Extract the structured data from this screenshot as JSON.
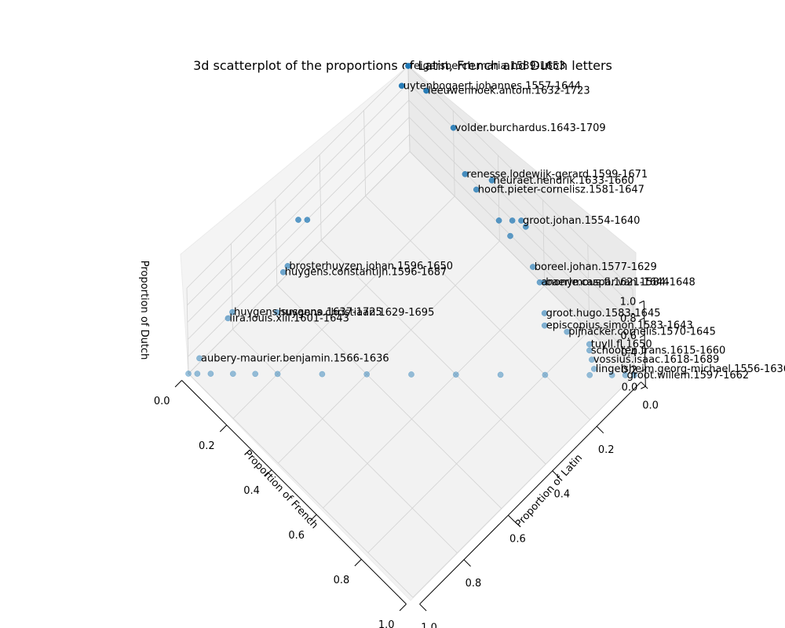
{
  "chart_data": {
    "type": "scatter",
    "projection": "3d",
    "title": "3d scatterplot of the proportions of Latin, French and Dutch letters",
    "xlabel": "Proportion of Latin",
    "ylabel": "Proportion of French",
    "zlabel": "Proportion of Dutch",
    "xlim": [
      0,
      1
    ],
    "ylim": [
      0,
      1
    ],
    "zlim": [
      0,
      1
    ],
    "x_ticks": [
      "0.0",
      "0.2",
      "0.4",
      "0.6",
      "0.8",
      "1.0"
    ],
    "y_ticks": [
      "0.0",
      "0.2",
      "0.4",
      "0.6",
      "0.8",
      "1.0"
    ],
    "z_ticks": [
      "0.0",
      "0.2",
      "0.4",
      "0.6",
      "0.8",
      "1.0"
    ],
    "grid": true,
    "marker_color": "#1f77b4",
    "points": [
      {
        "label": "reigersberch.maria.1589-1653",
        "x": 0.0,
        "y": 0.0,
        "z": 1.0
      },
      {
        "label": "uytenbogaert.johannes.1557-1644",
        "x": 0.02,
        "y": 0.05,
        "z": 0.95
      },
      {
        "label": "leeuwenhoek.antoni.1632-1723",
        "x": 0.08,
        "y": 0.0,
        "z": 0.92
      },
      {
        "label": "volder.burchardus.1643-1709",
        "x": 0.2,
        "y": 0.0,
        "z": 0.8
      },
      {
        "label": "renesse.lodewijk-gerard.1599-1671",
        "x": 0.3,
        "y": 0.05,
        "z": 0.65
      },
      {
        "label": "heuraet.hendrik.1633-1660",
        "x": 0.37,
        "y": 0.0,
        "z": 0.63
      },
      {
        "label": "hooft.pieter-cornelisz.1581-1647",
        "x": 0.35,
        "y": 0.05,
        "z": 0.6
      },
      {
        "label": "groot.johan.1554-1640",
        "x": 0.5,
        "y": 0.0,
        "z": 0.5
      },
      {
        "label": "",
        "x": 0.48,
        "y": 0.02,
        "z": 0.5
      },
      {
        "label": "",
        "x": 0.5,
        "y": 0.05,
        "z": 0.45
      },
      {
        "label": "",
        "x": 0.45,
        "y": 0.05,
        "z": 0.5
      },
      {
        "label": "",
        "x": 0.52,
        "y": 0.0,
        "z": 0.48
      },
      {
        "label": "",
        "x": 0.0,
        "y": 0.5,
        "z": 0.5
      },
      {
        "label": "",
        "x": 0.02,
        "y": 0.48,
        "z": 0.5
      },
      {
        "label": "boreel.johan.1577-1629",
        "x": 0.6,
        "y": 0.05,
        "z": 0.35
      },
      {
        "label": "baerle.caspar.van.1584-1648",
        "x": 0.65,
        "y": 0.05,
        "z": 0.3
      },
      {
        "label": "anonymous.fl.1621-1644",
        "x": 0.64,
        "y": 0.06,
        "z": 0.3
      },
      {
        "label": "groot.hugo.1583-1645",
        "x": 0.7,
        "y": 0.1,
        "z": 0.2
      },
      {
        "label": "episcopius.simon.1583-1643",
        "x": 0.72,
        "y": 0.12,
        "z": 0.16
      },
      {
        "label": "pijnacker.cornelis.1570-1645",
        "x": 0.78,
        "y": 0.08,
        "z": 0.14
      },
      {
        "label": "tuyll.fl.1650",
        "x": 0.85,
        "y": 0.05,
        "z": 0.1
      },
      {
        "label": "schooten.frans.1615-1660",
        "x": 0.86,
        "y": 0.06,
        "z": 0.08
      },
      {
        "label": "vossius.isaac.1618-1689",
        "x": 0.88,
        "y": 0.07,
        "z": 0.05
      },
      {
        "label": "lingelsheim.georg-michael.1556-1636",
        "x": 0.9,
        "y": 0.08,
        "z": 0.02
      },
      {
        "label": "groot.willem.1597-1662",
        "x": 0.98,
        "y": 0.02,
        "z": 0.0
      },
      {
        "label": "brosterhuyzen.johan.1596-1650",
        "x": 0.05,
        "y": 0.6,
        "z": 0.35
      },
      {
        "label": "huygens.constantijn.1596-1687",
        "x": 0.05,
        "y": 0.62,
        "z": 0.33
      },
      {
        "label": "huygens.susanna.1637-1725",
        "x": 0.0,
        "y": 0.8,
        "z": 0.2
      },
      {
        "label": "lira.louis.xiii.1601-1643",
        "x": 0.0,
        "y": 0.82,
        "z": 0.18
      },
      {
        "label": "huygens.christiaan.1629-1695",
        "x": 0.1,
        "y": 0.7,
        "z": 0.2
      },
      {
        "label": "aubery-maurier.benjamin.1566-1636",
        "x": 0.0,
        "y": 0.95,
        "z": 0.05
      },
      {
        "label": "",
        "x": 0.0,
        "y": 1.0,
        "z": 0.0
      },
      {
        "label": "",
        "x": 0.02,
        "y": 0.98,
        "z": 0.0
      },
      {
        "label": "",
        "x": 0.05,
        "y": 0.95,
        "z": 0.0
      },
      {
        "label": "",
        "x": 0.1,
        "y": 0.9,
        "z": 0.0
      },
      {
        "label": "",
        "x": 0.15,
        "y": 0.85,
        "z": 0.0
      },
      {
        "label": "",
        "x": 0.2,
        "y": 0.8,
        "z": 0.0
      },
      {
        "label": "",
        "x": 0.3,
        "y": 0.7,
        "z": 0.0
      },
      {
        "label": "",
        "x": 0.4,
        "y": 0.6,
        "z": 0.0
      },
      {
        "label": "",
        "x": 0.5,
        "y": 0.5,
        "z": 0.0
      },
      {
        "label": "",
        "x": 0.6,
        "y": 0.4,
        "z": 0.0
      },
      {
        "label": "",
        "x": 0.7,
        "y": 0.3,
        "z": 0.0
      },
      {
        "label": "",
        "x": 0.8,
        "y": 0.2,
        "z": 0.0
      },
      {
        "label": "",
        "x": 0.9,
        "y": 0.1,
        "z": 0.0
      },
      {
        "label": "",
        "x": 0.95,
        "y": 0.05,
        "z": 0.0
      },
      {
        "label": "",
        "x": 1.0,
        "y": 0.0,
        "z": 0.0
      }
    ]
  }
}
